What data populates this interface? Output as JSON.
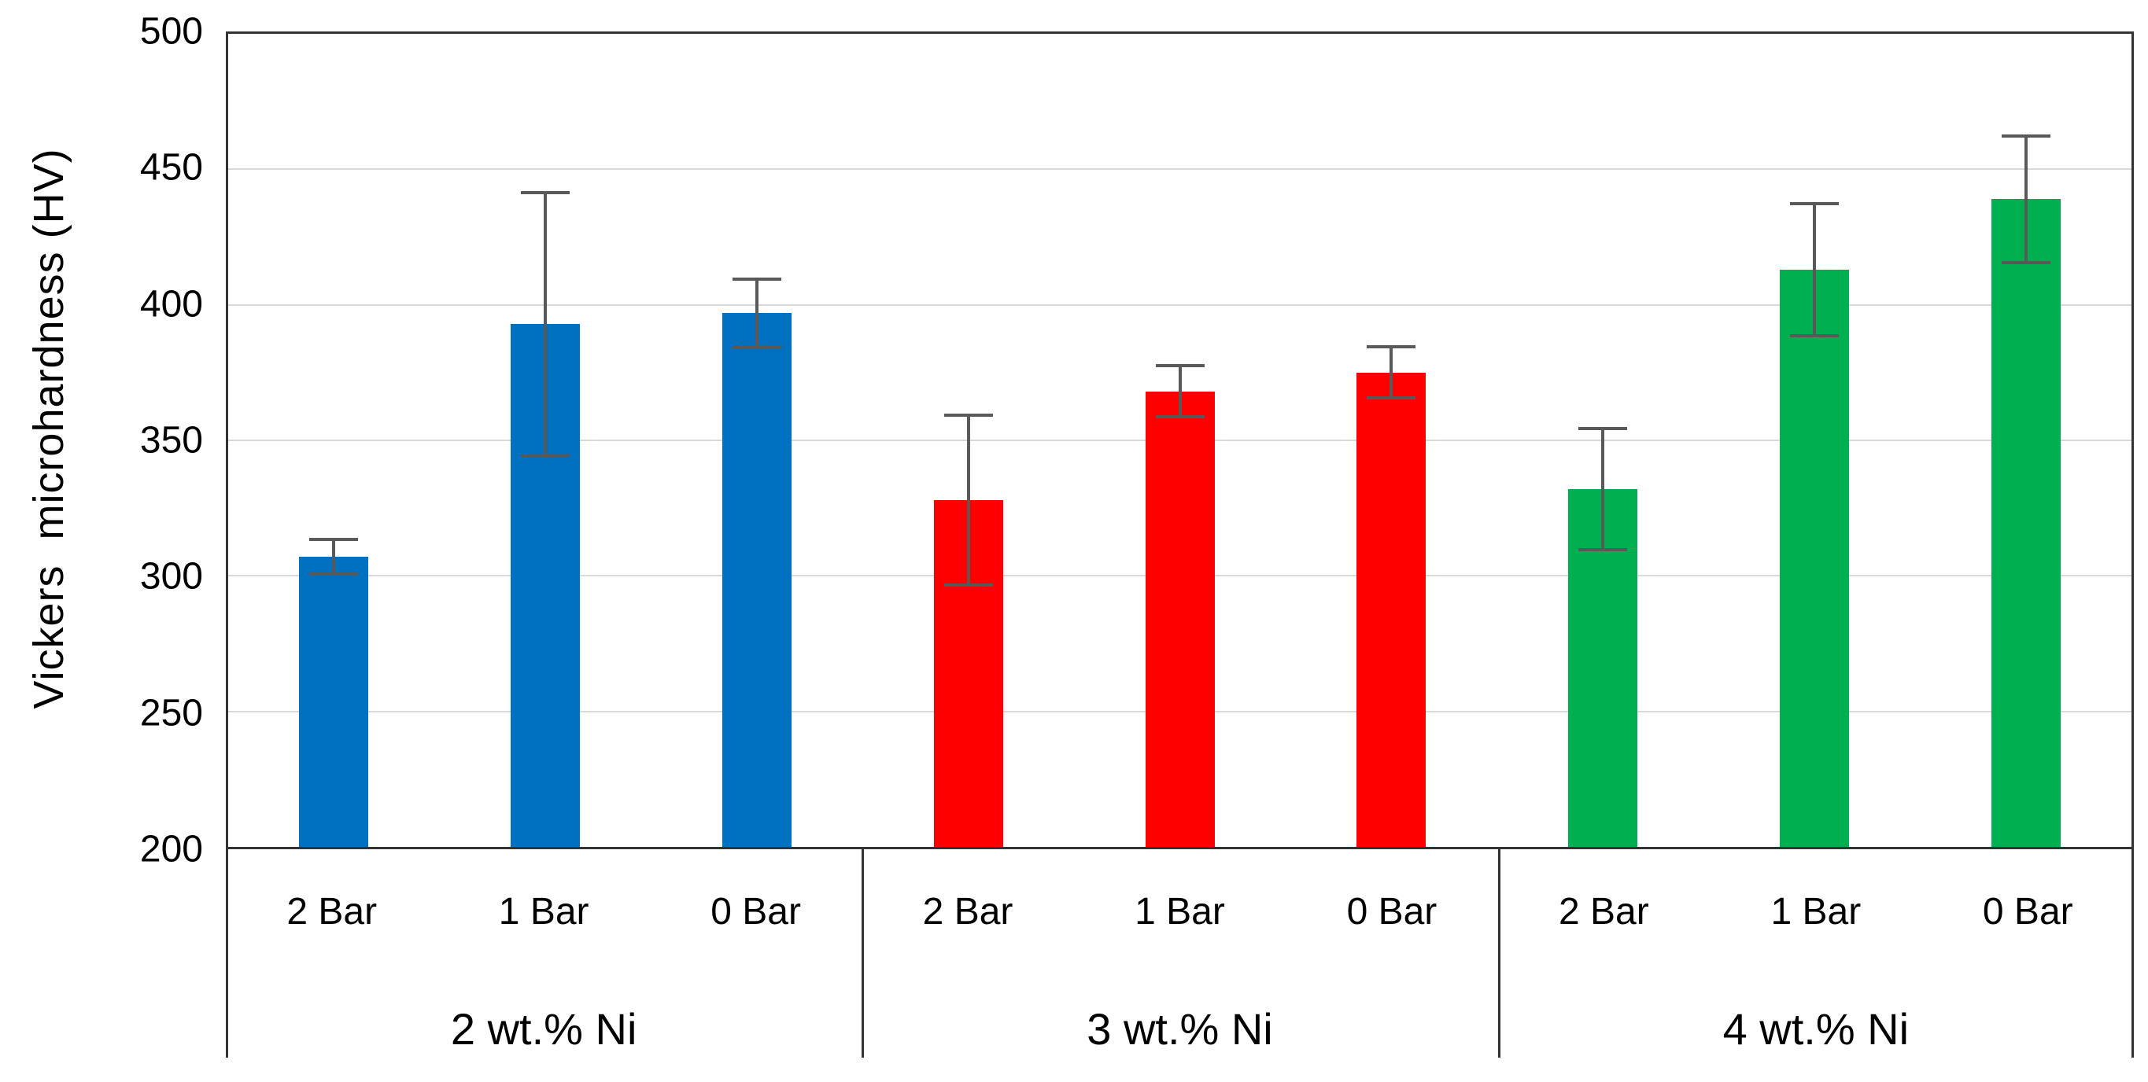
{
  "chart_data": {
    "type": "bar",
    "title": "",
    "ylabel": "Vickers  microhardness (HV)",
    "xlabel": "",
    "ylim": [
      200,
      500
    ],
    "yticks": [
      200,
      250,
      300,
      350,
      400,
      450,
      500
    ],
    "grid": "horizontal",
    "legend": "none",
    "bar_categories": [
      "2 Bar",
      "1 Bar",
      "0 Bar"
    ],
    "groups": [
      {
        "label": "2 wt.% Ni",
        "color": "#0070C0",
        "values": [
          307,
          393,
          397
        ],
        "errors": [
          7,
          49,
          13
        ]
      },
      {
        "label": "3 wt.% Ni",
        "color": "#FF0000",
        "values": [
          328,
          368,
          375
        ],
        "errors": [
          32,
          10,
          10
        ]
      },
      {
        "label": "4 wt.% Ni",
        "color": "#00B050",
        "values": [
          332,
          413,
          439
        ],
        "errors": [
          23,
          25,
          24
        ]
      }
    ],
    "error_bar_color": "#595959",
    "axis_color": "#333333",
    "gridline_color": "#D9D9D9",
    "text_color": "#000000"
  }
}
